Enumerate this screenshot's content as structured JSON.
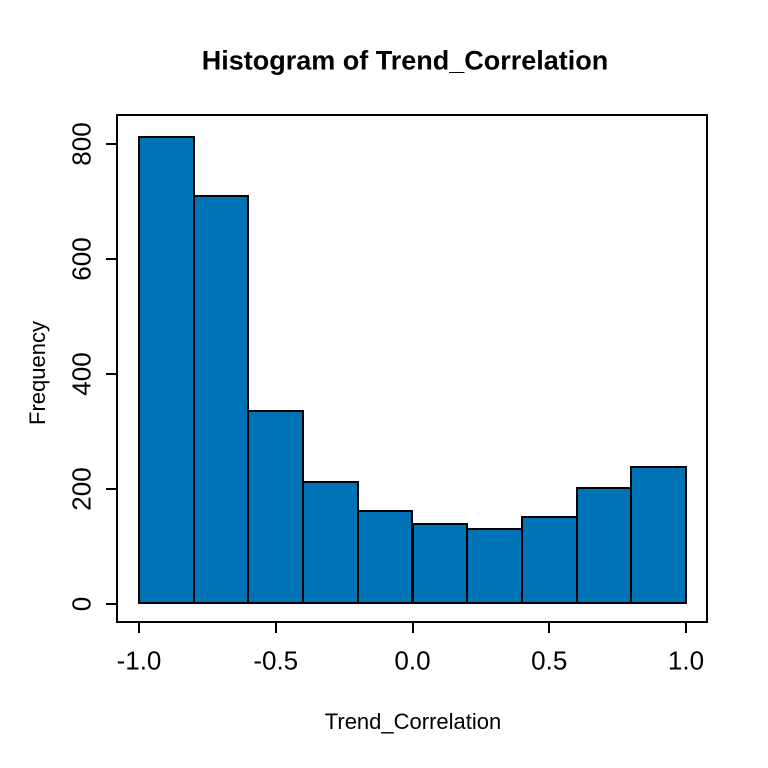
{
  "page": {
    "background": "#FFFFFF"
  },
  "chart_data": {
    "type": "bar",
    "subtype": "histogram",
    "title": "Histogram of Trend_Correlation",
    "xlabel": "Trend_Correlation",
    "ylabel": "Frequency",
    "bin_edges": [
      -1.0,
      -0.8,
      -0.6,
      -0.4,
      -0.2,
      0.0,
      0.2,
      0.4,
      0.6,
      0.8,
      1.0
    ],
    "values": [
      812,
      710,
      336,
      212,
      162,
      139,
      131,
      152,
      201,
      239
    ],
    "xlim": [
      -1.0,
      1.0
    ],
    "ylim": [
      0,
      800
    ],
    "x_ticks": {
      "values": [
        -1.0,
        -0.5,
        0.0,
        0.5,
        1.0
      ],
      "labels": [
        "-1.0",
        "-0.5",
        "0.0",
        "0.5",
        "1.0"
      ]
    },
    "y_ticks": {
      "values": [
        0,
        200,
        400,
        600,
        800
      ],
      "labels": [
        "0",
        "200",
        "400",
        "600",
        "800"
      ]
    },
    "grid": false,
    "legend": null,
    "colors": {
      "bar_fill": "#0073B6",
      "bar_stroke": "#000000",
      "axis": "#000000",
      "text": "#000000"
    }
  }
}
